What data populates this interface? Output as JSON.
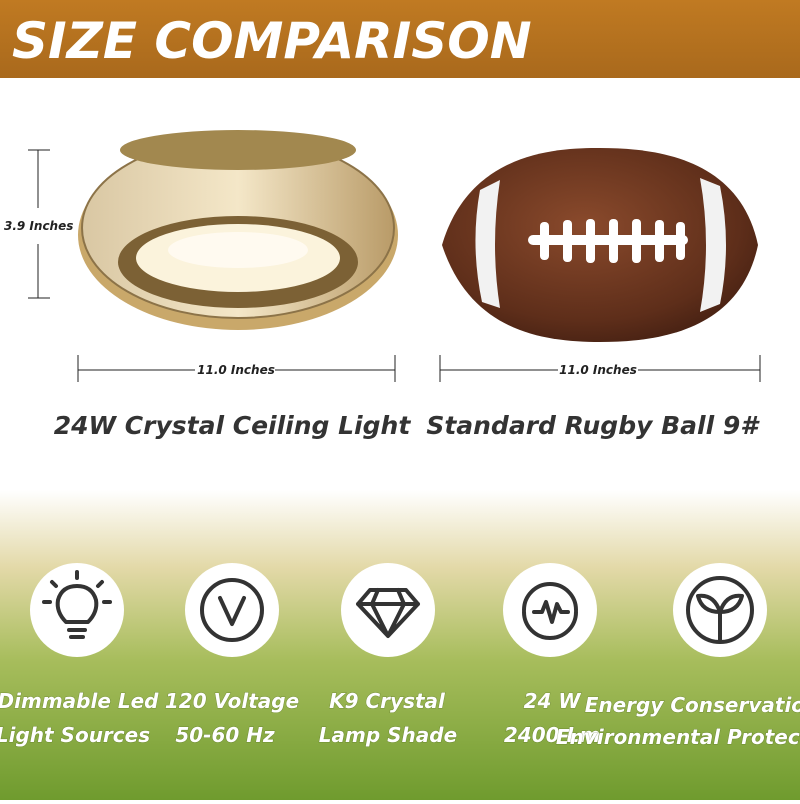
{
  "header": {
    "title": "SIZE COMPARISON"
  },
  "comparison": [
    {
      "height": "3.9 Inches",
      "width": "11.0 Inches",
      "caption": "24W Crystal Ceiling Light"
    },
    {
      "width": "11.0 Inches",
      "caption": "Standard Rugby Ball 9#"
    }
  ],
  "features": [
    {
      "lines": [
        "Dimmable Led",
        "Light Sources"
      ]
    },
    {
      "lines": [
        "120 Voltage",
        "50-60 Hz"
      ]
    },
    {
      "lines": [
        "K9 Crystal",
        "Lamp Shade"
      ]
    },
    {
      "lines": [
        "24 W",
        "2400 Lm"
      ]
    },
    {
      "lines": [
        "Energy Conservation",
        "Environmental Protection"
      ]
    }
  ]
}
